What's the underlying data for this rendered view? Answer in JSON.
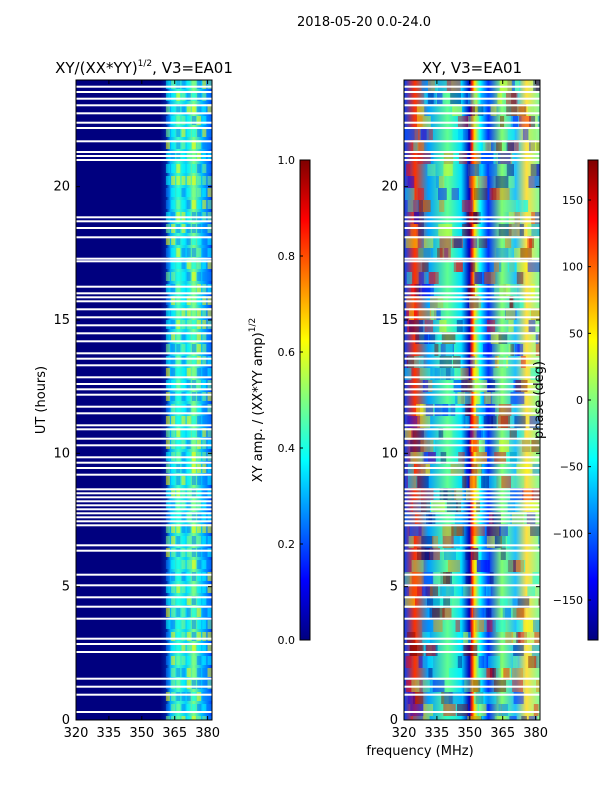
{
  "suptitle": "2018-05-20 0.0-24.0",
  "shared_xlabel": "frequency (MHz)",
  "ylabel": "UT (hours)",
  "colors": {
    "jet": [
      "#00007f",
      "#0000ff",
      "#007fff",
      "#00ffff",
      "#7fff7f",
      "#ffff00",
      "#ff7f00",
      "#ff0000",
      "#7f0000"
    ],
    "gap": "#ffffff"
  },
  "chart_data": [
    {
      "type": "heatmap",
      "panel": "left",
      "title_main": "XY/(XX*YY)",
      "title_sup": "1/2",
      "title_tail": ", V3=EA01",
      "xlim": [
        320,
        382
      ],
      "ylim": [
        0,
        24
      ],
      "xticks": [
        320,
        335,
        350,
        365,
        380
      ],
      "yticks": [
        0,
        5,
        10,
        15,
        20
      ],
      "colorbar": {
        "label_main": "XY amp. / (XX*YY amp)",
        "label_sup": "1/2",
        "range": [
          0.0,
          1.0
        ],
        "ticks": [
          "0.0",
          "0.2",
          "0.4",
          "0.6",
          "0.8",
          "1.0"
        ]
      },
      "bright_band_mhz": [
        361,
        382
      ],
      "bright_band_peak_value": 0.5,
      "background_value": 0.05
    },
    {
      "type": "heatmap",
      "panel": "right",
      "title": "XY, V3=EA01",
      "xlim": [
        320,
        382
      ],
      "ylim": [
        0,
        24
      ],
      "xticks": [
        320,
        335,
        350,
        365,
        380
      ],
      "yticks": [
        0,
        5,
        10,
        15,
        20
      ],
      "colorbar": {
        "label": "phase (deg)",
        "range": [
          -180,
          180
        ],
        "ticks": [
          "150",
          "100",
          "50",
          "0",
          "−50",
          "−100",
          "−150"
        ],
        "tick_values": [
          150,
          100,
          50,
          0,
          -50,
          -100,
          -150
        ]
      }
    }
  ],
  "flagged_gaps_hours": [
    0.3,
    0.95,
    1.25,
    1.55,
    2.55,
    2.85,
    3.05,
    3.8,
    4.25,
    4.6,
    5.05,
    5.45,
    6.35,
    6.55,
    7.3,
    7.45,
    7.6,
    7.75,
    7.9,
    8.05,
    8.2,
    8.35,
    8.5,
    8.65,
    9.2,
    9.45,
    9.65,
    9.85,
    10.3,
    10.55,
    10.9,
    11.05,
    11.5,
    11.75,
    12.2,
    12.4,
    12.6,
    12.85,
    13.3,
    13.55,
    13.75,
    14.2,
    14.5,
    14.8,
    15.1,
    15.4,
    15.7,
    15.85,
    16.0,
    16.25,
    17.2,
    17.3,
    18.1,
    18.45,
    18.7,
    18.85,
    21.0,
    21.15,
    21.3,
    21.7,
    22.2,
    22.4,
    22.75,
    23.05,
    23.3,
    23.55,
    23.75
  ]
}
